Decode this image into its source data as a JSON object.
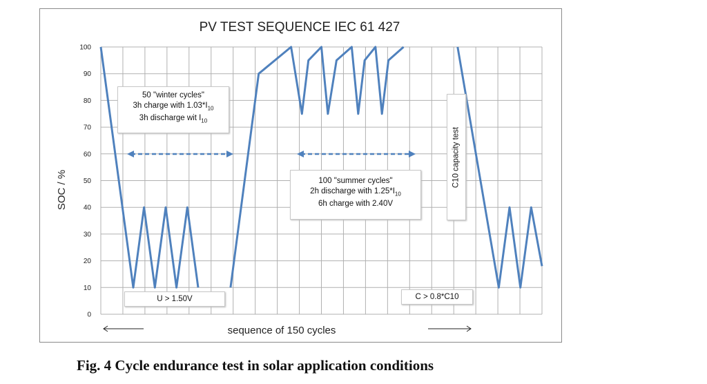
{
  "chart_data": {
    "type": "line",
    "title": "PV TEST SEQUENCE  IEC 61 427",
    "ylabel": "SOC / %",
    "xlabel": "sequence of 150 cycles",
    "ylim": [
      0,
      100
    ],
    "y_ticks": [
      "0",
      "10",
      "20",
      "30",
      "40",
      "50",
      "60",
      "70",
      "80",
      "90",
      "100"
    ],
    "grid": true,
    "series": [
      {
        "color": "#4f81bd",
        "segments": [
          [
            [
              0,
              100
            ],
            [
              1.5,
              10
            ],
            [
              2,
              40
            ],
            [
              2.5,
              10
            ],
            [
              3,
              40
            ],
            [
              3.5,
              10
            ],
            [
              4,
              40
            ],
            [
              4.5,
              10
            ]
          ],
          [
            [
              6,
              10
            ],
            [
              7.3,
              90
            ],
            [
              8.8,
              100
            ],
            [
              9.3,
              75
            ],
            [
              9.6,
              95
            ],
            [
              10.2,
              100
            ],
            [
              10.5,
              75
            ],
            [
              10.9,
              95
            ],
            [
              11.6,
              100
            ],
            [
              11.9,
              75
            ],
            [
              12.2,
              95
            ],
            [
              12.7,
              100
            ],
            [
              13,
              75
            ],
            [
              13.3,
              95
            ],
            [
              14,
              100
            ]
          ],
          [
            [
              16.5,
              100
            ],
            [
              18.4,
              10
            ],
            [
              18.9,
              40
            ],
            [
              19.4,
              10
            ],
            [
              19.9,
              40
            ],
            [
              20.4,
              18
            ]
          ]
        ]
      }
    ],
    "annotations": {
      "winter_line1": "50 \"winter cycles\"",
      "winter_line2_pre": "3h charge with 1.03*I",
      "winter_line2_sub": "10",
      "winter_line3_pre": "3h discharge wit I",
      "winter_line3_sub": "10",
      "summer_line1": "100 \"summer cycles\"",
      "summer_line2_pre": "2h discharge with 1.25*I",
      "summer_line2_sub": "10",
      "summer_line3": "6h charge with 2.40V",
      "capacity": "C10  capacity test",
      "voltage": "U > 1.50V",
      "capacity_condition": "C > 0.8*C10"
    }
  },
  "caption": "Fig. 4 Cycle endurance test in solar application conditions"
}
